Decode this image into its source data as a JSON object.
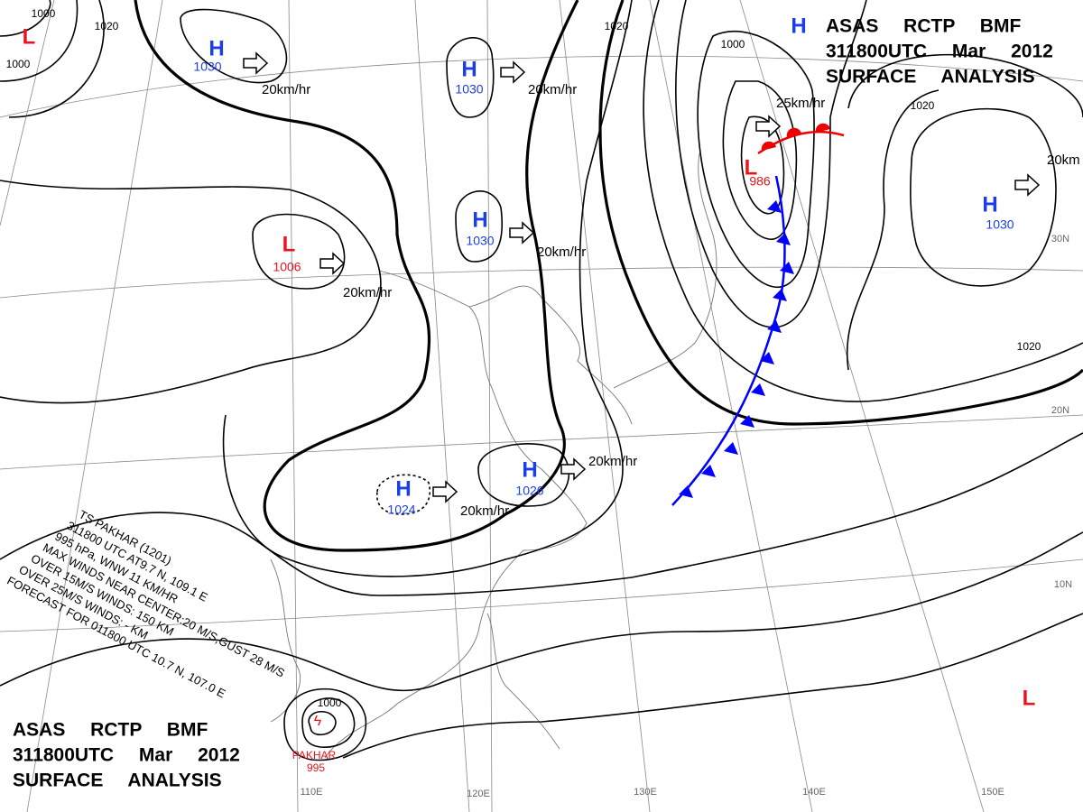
{
  "header_top": {
    "lines": [
      "ASAS RCTP BMF",
      "311800UTC Mar 2012",
      "SURFACE ANALYSIS"
    ]
  },
  "header_bottom": {
    "lines": [
      "ASAS RCTP BMF",
      "311800UTC Mar 2012",
      "SURFACE ANALYSIS"
    ]
  },
  "pressure_centers": [
    {
      "symbol": "L"
    },
    {
      "symbol": "H",
      "value": "1030"
    },
    {
      "symbol": "H",
      "value": "1030"
    },
    {
      "symbol": "H",
      "value": "1030"
    },
    {
      "symbol": "L",
      "value": "1006"
    },
    {
      "symbol": "H",
      "value": "1024"
    },
    {
      "symbol": "H",
      "value": "1026"
    },
    {
      "symbol": "L",
      "value": "986"
    },
    {
      "symbol": "H"
    },
    {
      "symbol": "H",
      "value": "1030"
    },
    {
      "symbol": "L"
    }
  ],
  "motions": [
    "20km/hr",
    "20km/hr",
    "20km/hr",
    "20km/hr",
    "20km/hr",
    "20km/hr",
    "25km/hr",
    "20km"
  ],
  "isobar_labels": [
    "1000",
    "1000",
    "1020",
    "1020",
    "1000",
    "1020",
    "1020",
    "1000"
  ],
  "typhoon": {
    "lines": [
      "TS PAKHAR (1201)",
      "311800 UTC AT9.7 N, 109.1 E",
      "995 hPa, WNW 11 KM/HR",
      "MAX WINDS NEAR CENTER:20 M/S,GUST 28 M/S",
      "OVER 15M/S WINDS: 150 KM",
      "OVER 25M/S WINDS: - KM",
      "FORECAST FOR 011800 UTC 10.7 N, 107.0 E"
    ],
    "name": "PAKHAR",
    "pressure": "995"
  },
  "grid_labels": [
    "110E",
    "120E",
    "130E",
    "140E",
    "150E",
    "30N",
    "20N",
    "10N"
  ]
}
